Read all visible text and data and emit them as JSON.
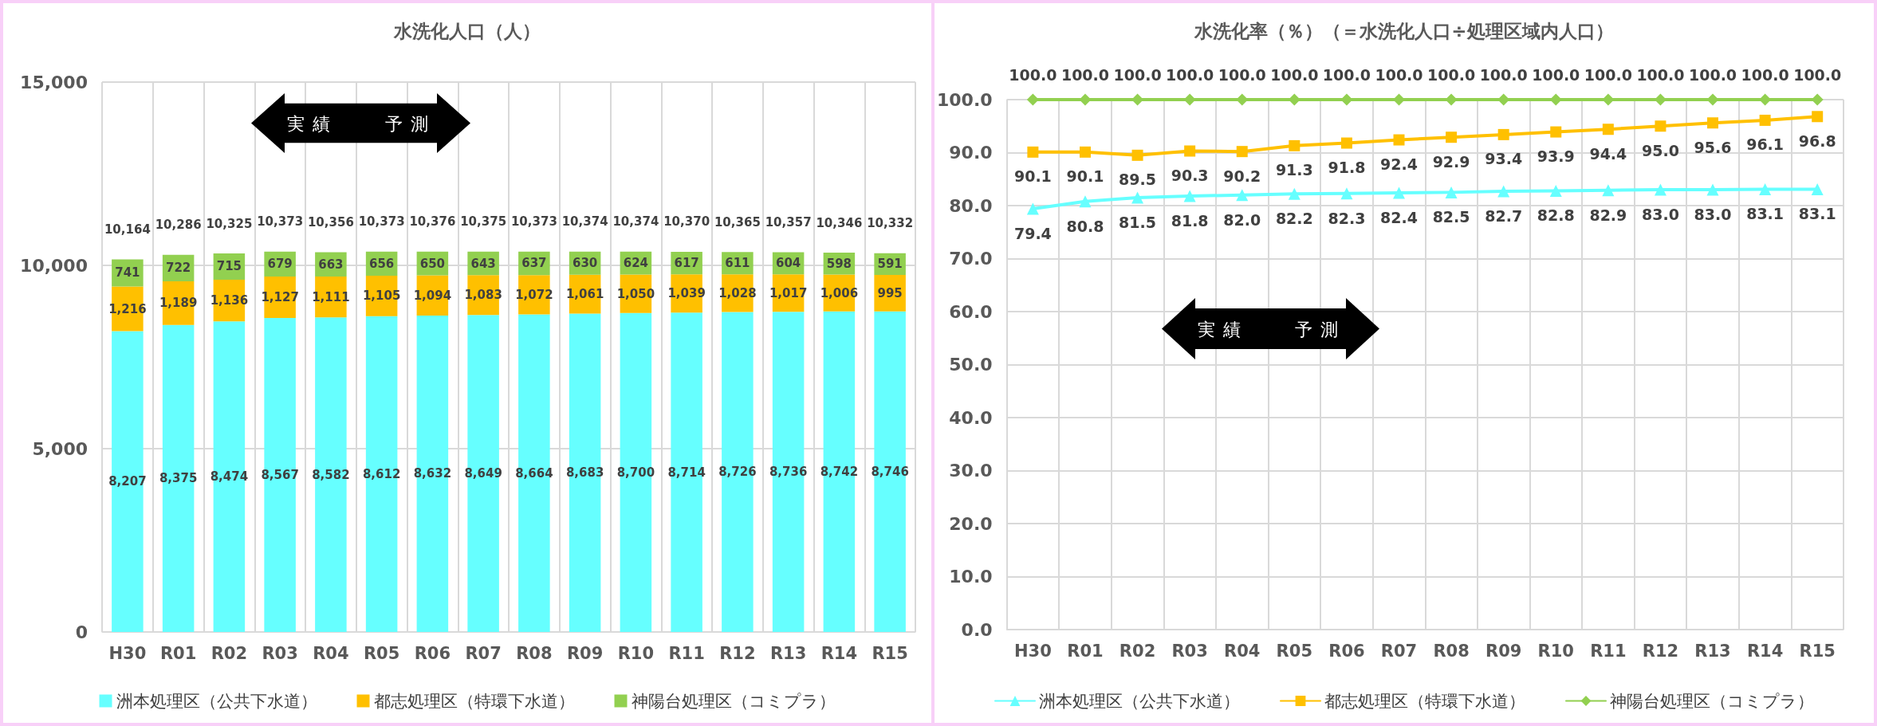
{
  "chart_data": [
    {
      "type": "bar",
      "title": "水洗化人口（人）",
      "stacked": true,
      "grid": true,
      "legend": "bottom",
      "categories": [
        "H30",
        "R01",
        "R02",
        "R03",
        "R04",
        "R05",
        "R06",
        "R07",
        "R08",
        "R09",
        "R10",
        "R11",
        "R12",
        "R13",
        "R14",
        "R15"
      ],
      "ylim": [
        0,
        15000
      ],
      "yticks": [
        0,
        {
          "value": 5000,
          "label": "5,000"
        },
        {
          "value": 10000,
          "label": "10,000"
        },
        {
          "value": 15000,
          "label": "15,000"
        }
      ],
      "series": [
        {
          "name": "洲本処理区（公共下水道）",
          "color": "#66ffff",
          "values": [
            8207,
            8375,
            8474,
            8567,
            8582,
            8612,
            8632,
            8649,
            8664,
            8683,
            8700,
            8714,
            8726,
            8736,
            8742,
            8746
          ],
          "value_labels": [
            "8,207",
            "8,375",
            "8,474",
            "8,567",
            "8,582",
            "8,612",
            "8,632",
            "8,649",
            "8,664",
            "8,683",
            "8,700",
            "8,714",
            "8,726",
            "8,736",
            "8,742",
            "8,746"
          ]
        },
        {
          "name": "都志処理区（特環下水道）",
          "color": "#ffc000",
          "values": [
            1216,
            1189,
            1136,
            1127,
            1111,
            1105,
            1094,
            1083,
            1072,
            1061,
            1050,
            1039,
            1028,
            1017,
            1006,
            995
          ],
          "value_labels": [
            "1,216",
            "1,189",
            "1,136",
            "1,127",
            "1,111",
            "1,105",
            "1,094",
            "1,083",
            "1,072",
            "1,061",
            "1,050",
            "1,039",
            "1,028",
            "1,017",
            "1,006",
            "995"
          ]
        },
        {
          "name": "神陽台処理区（コミプラ）",
          "color": "#92d050",
          "values": [
            741,
            722,
            715,
            679,
            663,
            656,
            650,
            643,
            637,
            630,
            624,
            617,
            611,
            604,
            598,
            591
          ],
          "value_labels": [
            "741",
            "722",
            "715",
            "679",
            "663",
            "656",
            "650",
            "643",
            "637",
            "630",
            "624",
            "617",
            "611",
            "604",
            "598",
            "591"
          ]
        }
      ],
      "totals": [
        "10,164",
        "10,286",
        "10,325",
        "10,373",
        "10,356",
        "10,373",
        "10,376",
        "10,375",
        "10,373",
        "10,374",
        "10,374",
        "10,370",
        "10,365",
        "10,357",
        "10,346",
        "10,332"
      ],
      "annotations": [
        "実績",
        "予測"
      ]
    },
    {
      "type": "line",
      "title": "水洗化率（％）（＝水洗化人口÷処理区域内人口）",
      "grid": true,
      "legend": "bottom",
      "categories": [
        "H30",
        "R01",
        "R02",
        "R03",
        "R04",
        "R05",
        "R06",
        "R07",
        "R08",
        "R09",
        "R10",
        "R11",
        "R12",
        "R13",
        "R14",
        "R15"
      ],
      "ylim": [
        0,
        100
      ],
      "yticks": [
        {
          "value": 0,
          "label": "0.0"
        },
        {
          "value": 10,
          "label": "10.0"
        },
        {
          "value": 20,
          "label": "20.0"
        },
        {
          "value": 30,
          "label": "30.0"
        },
        {
          "value": 40,
          "label": "40.0"
        },
        {
          "value": 50,
          "label": "50.0"
        },
        {
          "value": 60,
          "label": "60.0"
        },
        {
          "value": 70,
          "label": "70.0"
        },
        {
          "value": 80,
          "label": "80.0"
        },
        {
          "value": 90,
          "label": "90.0"
        },
        {
          "value": 100,
          "label": "100.0"
        }
      ],
      "series": [
        {
          "name": "洲本処理区（公共下水道）",
          "color": "#66ffff",
          "marker": "triangle",
          "values": [
            79.4,
            80.8,
            81.5,
            81.8,
            82.0,
            82.2,
            82.3,
            82.4,
            82.5,
            82.7,
            82.8,
            82.9,
            83.0,
            83.0,
            83.1,
            83.1
          ],
          "value_labels": [
            "79.4",
            "80.8",
            "81.5",
            "81.8",
            "82.0",
            "82.2",
            "82.3",
            "82.4",
            "82.5",
            "82.7",
            "82.8",
            "82.9",
            "83.0",
            "83.0",
            "83.1",
            "83.1"
          ]
        },
        {
          "name": "都志処理区（特環下水道）",
          "color": "#ffc000",
          "marker": "square",
          "values": [
            90.1,
            90.1,
            89.5,
            90.3,
            90.2,
            91.3,
            91.8,
            92.4,
            92.9,
            93.4,
            93.9,
            94.4,
            95.0,
            95.6,
            96.1,
            96.8
          ],
          "value_labels": [
            "90.1",
            "90.1",
            "89.5",
            "90.3",
            "90.2",
            "91.3",
            "91.8",
            "92.4",
            "92.9",
            "93.4",
            "93.9",
            "94.4",
            "95.0",
            "95.6",
            "96.1",
            "96.8"
          ]
        },
        {
          "name": "神陽台処理区（コミプラ）",
          "color": "#92d050",
          "marker": "diamond",
          "values": [
            100,
            100,
            100,
            100,
            100,
            100,
            100,
            100,
            100,
            100,
            100,
            100,
            100,
            100,
            100,
            100
          ],
          "value_labels": [
            "100.0",
            "100.0",
            "100.0",
            "100.0",
            "100.0",
            "100.0",
            "100.0",
            "100.0",
            "100.0",
            "100.0",
            "100.0",
            "100.0",
            "100.0",
            "100.0",
            "100.0",
            "100.0"
          ]
        }
      ],
      "annotations": [
        "実績",
        "予測"
      ]
    }
  ]
}
